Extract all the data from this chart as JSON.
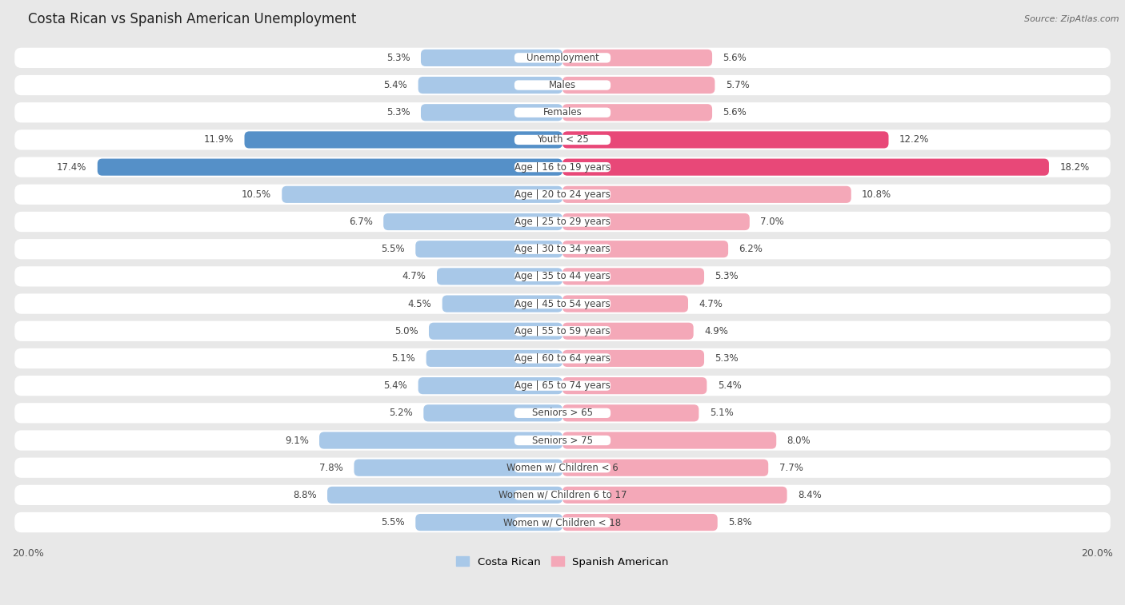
{
  "title": "Costa Rican vs Spanish American Unemployment",
  "source": "Source: ZipAtlas.com",
  "categories": [
    "Unemployment",
    "Males",
    "Females",
    "Youth < 25",
    "Age | 16 to 19 years",
    "Age | 20 to 24 years",
    "Age | 25 to 29 years",
    "Age | 30 to 34 years",
    "Age | 35 to 44 years",
    "Age | 45 to 54 years",
    "Age | 55 to 59 years",
    "Age | 60 to 64 years",
    "Age | 65 to 74 years",
    "Seniors > 65",
    "Seniors > 75",
    "Women w/ Children < 6",
    "Women w/ Children 6 to 17",
    "Women w/ Children < 18"
  ],
  "costa_rican": [
    5.3,
    5.4,
    5.3,
    11.9,
    17.4,
    10.5,
    6.7,
    5.5,
    4.7,
    4.5,
    5.0,
    5.1,
    5.4,
    5.2,
    9.1,
    7.8,
    8.8,
    5.5
  ],
  "spanish_american": [
    5.6,
    5.7,
    5.6,
    12.2,
    18.2,
    10.8,
    7.0,
    6.2,
    5.3,
    4.7,
    4.9,
    5.3,
    5.4,
    5.1,
    8.0,
    7.7,
    8.4,
    5.8
  ],
  "costa_rican_color": "#a8c8e8",
  "spanish_american_color": "#f4a8b8",
  "highlight_costa_rican_color": "#5590c8",
  "highlight_spanish_american_color": "#e84878",
  "row_bg_color": "#ffffff",
  "page_bg_color": "#e8e8e8",
  "max_value": 20.0,
  "bar_height": 0.62,
  "label_fontsize": 8.5,
  "title_fontsize": 12,
  "source_fontsize": 8,
  "legend_label_cr": "Costa Rican",
  "legend_label_sa": "Spanish American"
}
